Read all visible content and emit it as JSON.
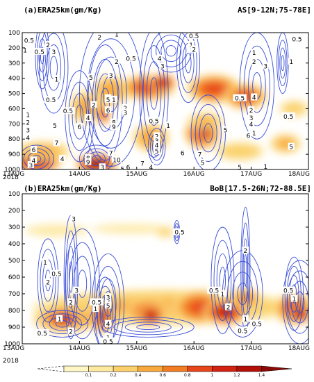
{
  "chart_data": [
    {
      "type": "heatmap",
      "panel": "(a)",
      "title": "(a)ERA25km(gm/Kg)",
      "region": "AS[9-12N;75-78E]",
      "x_ticks": [
        "13AUG",
        "14AUG",
        "15AUG",
        "16AUG",
        "17AUG",
        "18AUG"
      ],
      "x_year": "2018",
      "y_ticks": [
        1000,
        900,
        800,
        700,
        600,
        500,
        400,
        300,
        200,
        100
      ],
      "ylim": [
        1000,
        100
      ],
      "xlim": [
        0,
        5
      ],
      "fill_blobs": [
        {
          "x": 0.25,
          "p": 940,
          "rx": 0.45,
          "rp": 95,
          "v": 1.35
        },
        {
          "x": 1.3,
          "p": 965,
          "rx": 0.38,
          "rp": 70,
          "v": 1.45
        },
        {
          "x": 0.35,
          "p": 880,
          "rx": 0.55,
          "rp": 70,
          "v": 0.45
        },
        {
          "x": 1.1,
          "p": 590,
          "rx": 0.3,
          "rp": 120,
          "v": 0.45
        },
        {
          "x": 1.42,
          "p": 510,
          "rx": 0.14,
          "rp": 90,
          "v": 1.35
        },
        {
          "x": 1.42,
          "p": 640,
          "rx": 0.12,
          "rp": 70,
          "v": 1.0
        },
        {
          "x": 1.55,
          "p": 480,
          "rx": 0.35,
          "rp": 110,
          "v": 0.5
        },
        {
          "x": 2.2,
          "p": 460,
          "rx": 0.5,
          "rp": 90,
          "v": 0.9
        },
        {
          "x": 2.45,
          "p": 430,
          "rx": 0.25,
          "rp": 60,
          "v": 1.25
        },
        {
          "x": 3.35,
          "p": 470,
          "rx": 0.5,
          "rp": 100,
          "v": 0.9
        },
        {
          "x": 3.9,
          "p": 520,
          "rx": 0.4,
          "rp": 90,
          "v": 0.85
        },
        {
          "x": 2.25,
          "p": 790,
          "rx": 0.35,
          "rp": 100,
          "v": 0.55
        },
        {
          "x": 3.15,
          "p": 760,
          "rx": 0.33,
          "rp": 110,
          "v": 1.05
        },
        {
          "x": 3.2,
          "p": 750,
          "rx": 0.18,
          "rp": 60,
          "v": 1.3
        },
        {
          "x": 3.2,
          "p": 680,
          "rx": 0.35,
          "rp": 60,
          "v": 0.4
        },
        {
          "x": 3.8,
          "p": 880,
          "rx": 0.5,
          "rp": 70,
          "v": 0.3
        },
        {
          "x": 4.6,
          "p": 830,
          "rx": 0.3,
          "rp": 70,
          "v": 0.45
        },
        {
          "x": 4.75,
          "p": 600,
          "rx": 0.3,
          "rp": 60,
          "v": 0.3
        }
      ],
      "contour_labels": [
        {
          "x": 0.12,
          "p": 150,
          "t": "0.5"
        },
        {
          "x": 0.3,
          "p": 225,
          "t": "0.5"
        },
        {
          "x": 0.45,
          "p": 180,
          "t": "2"
        },
        {
          "x": 0.55,
          "p": 225,
          "t": "3"
        },
        {
          "x": 0.05,
          "p": 215,
          "t": "1"
        },
        {
          "x": 0.1,
          "p": 640,
          "t": "1"
        },
        {
          "x": 0.1,
          "p": 690,
          "t": "2"
        },
        {
          "x": 0.1,
          "p": 740,
          "t": "3"
        },
        {
          "x": 0.1,
          "p": 790,
          "t": "4"
        },
        {
          "x": 0.57,
          "p": 710,
          "t": "5"
        },
        {
          "x": 0.2,
          "p": 870,
          "t": "6"
        },
        {
          "x": 0.6,
          "p": 825,
          "t": "7"
        },
        {
          "x": 0.15,
          "p": 970,
          "t": "3"
        },
        {
          "x": 0.2,
          "p": 940,
          "t": "4"
        },
        {
          "x": 0.7,
          "p": 930,
          "t": "4"
        },
        {
          "x": 0.6,
          "p": 405,
          "t": "1"
        },
        {
          "x": 0.5,
          "p": 540,
          "t": "0.5"
        },
        {
          "x": 0.8,
          "p": 615,
          "t": "0.5"
        },
        {
          "x": 1.0,
          "p": 720,
          "t": "6"
        },
        {
          "x": 1.15,
          "p": 925,
          "t": "8"
        },
        {
          "x": 1.15,
          "p": 950,
          "t": "9"
        },
        {
          "x": 1.55,
          "p": 890,
          "t": "7"
        },
        {
          "x": 1.4,
          "p": 985,
          "t": "3"
        },
        {
          "x": 1.35,
          "p": 130,
          "t": "2"
        },
        {
          "x": 1.65,
          "p": 110,
          "t": "1"
        },
        {
          "x": 1.2,
          "p": 395,
          "t": "5"
        },
        {
          "x": 1.25,
          "p": 575,
          "t": "2"
        },
        {
          "x": 1.15,
          "p": 660,
          "t": "4"
        },
        {
          "x": 1.55,
          "p": 380,
          "t": "3"
        },
        {
          "x": 1.65,
          "p": 290,
          "t": "2"
        },
        {
          "x": 1.5,
          "p": 530,
          "t": "1"
        },
        {
          "x": 1.5,
          "p": 610,
          "t": "6"
        },
        {
          "x": 1.5,
          "p": 540,
          "t": "5"
        },
        {
          "x": 1.6,
          "p": 540,
          "t": "1"
        },
        {
          "x": 1.8,
          "p": 595,
          "t": "2"
        },
        {
          "x": 1.8,
          "p": 625,
          "t": "3"
        },
        {
          "x": 1.6,
          "p": 690,
          "t": "8"
        },
        {
          "x": 1.6,
          "p": 720,
          "t": "9"
        },
        {
          "x": 1.65,
          "p": 935,
          "t": "10"
        },
        {
          "x": 1.75,
          "p": 995,
          "t": "5"
        },
        {
          "x": 1.85,
          "p": 985,
          "t": "6"
        },
        {
          "x": 2.1,
          "p": 960,
          "t": "7"
        },
        {
          "x": 2.25,
          "p": 985,
          "t": "4"
        },
        {
          "x": 2.3,
          "p": 680,
          "t": "0.5"
        },
        {
          "x": 2.35,
          "p": 780,
          "t": "2"
        },
        {
          "x": 2.35,
          "p": 810,
          "t": "3"
        },
        {
          "x": 2.35,
          "p": 840,
          "t": "4"
        },
        {
          "x": 2.35,
          "p": 880,
          "t": "5"
        },
        {
          "x": 2.8,
          "p": 890,
          "t": "6"
        },
        {
          "x": 3.1,
          "p": 900,
          "t": "7"
        },
        {
          "x": 3.15,
          "p": 955,
          "t": "5"
        },
        {
          "x": 2.55,
          "p": 710,
          "t": "1"
        },
        {
          "x": 1.9,
          "p": 270,
          "t": "0.5"
        },
        {
          "x": 2.4,
          "p": 270,
          "t": "4"
        },
        {
          "x": 2.45,
          "p": 320,
          "t": "3"
        },
        {
          "x": 2.95,
          "p": 180,
          "t": "1"
        },
        {
          "x": 3.0,
          "p": 210,
          "t": "2"
        },
        {
          "x": 3.0,
          "p": 120,
          "t": "0.5"
        },
        {
          "x": 3.55,
          "p": 740,
          "t": "5"
        },
        {
          "x": 3.95,
          "p": 775,
          "t": "6"
        },
        {
          "x": 4.0,
          "p": 610,
          "t": "2"
        },
        {
          "x": 4.0,
          "p": 660,
          "t": "3"
        },
        {
          "x": 4.0,
          "p": 700,
          "t": "4"
        },
        {
          "x": 4.05,
          "p": 760,
          "t": "1"
        },
        {
          "x": 4.05,
          "p": 290,
          "t": "2"
        },
        {
          "x": 4.05,
          "p": 230,
          "t": "1"
        },
        {
          "x": 4.25,
          "p": 320,
          "t": "3"
        },
        {
          "x": 4.7,
          "p": 290,
          "t": "1"
        },
        {
          "x": 4.8,
          "p": 140,
          "t": "0.5"
        },
        {
          "x": 3.8,
          "p": 530,
          "t": "0.5"
        },
        {
          "x": 4.05,
          "p": 525,
          "t": "4"
        },
        {
          "x": 4.65,
          "p": 650,
          "t": "0.5"
        },
        {
          "x": 4.7,
          "p": 850,
          "t": "5"
        },
        {
          "x": 3.8,
          "p": 985,
          "t": "5"
        },
        {
          "x": 4.25,
          "p": 980,
          "t": "1"
        }
      ]
    },
    {
      "type": "heatmap",
      "panel": "(b)",
      "title": "(b)ERA25km(gm/Kg)",
      "region": "BoB[17.5-26N;72-88.5E]",
      "x_ticks": [
        "13AUG",
        "14AUG",
        "15AUG",
        "16AUG",
        "17AUG",
        "18AUG"
      ],
      "x_year": "2018",
      "y_ticks": [
        1000,
        900,
        800,
        700,
        600,
        500,
        400,
        300,
        200,
        100
      ],
      "ylim": [
        1000,
        100
      ],
      "xlim": [
        0,
        5
      ],
      "fill_blobs": [
        {
          "x": 0.6,
          "p": 320,
          "rx": 0.7,
          "rp": 45,
          "v": 0.18
        },
        {
          "x": 1.9,
          "p": 310,
          "rx": 0.9,
          "rp": 35,
          "v": 0.16
        },
        {
          "x": 2.5,
          "p": 330,
          "rx": 0.2,
          "rp": 40,
          "v": 0.22
        },
        {
          "x": 2.5,
          "p": 780,
          "rx": 2.6,
          "rp": 120,
          "v": 0.4
        },
        {
          "x": 0.75,
          "p": 850,
          "rx": 0.6,
          "rp": 90,
          "v": 0.75
        },
        {
          "x": 0.7,
          "p": 850,
          "rx": 0.35,
          "rp": 60,
          "v": 1.2
        },
        {
          "x": 1.4,
          "p": 840,
          "rx": 0.25,
          "rp": 100,
          "v": 1.0
        },
        {
          "x": 1.43,
          "p": 830,
          "rx": 0.12,
          "rp": 60,
          "v": 1.4
        },
        {
          "x": 2.2,
          "p": 810,
          "rx": 0.4,
          "rp": 90,
          "v": 0.9
        },
        {
          "x": 2.25,
          "p": 830,
          "rx": 0.25,
          "rp": 60,
          "v": 1.25
        },
        {
          "x": 3.1,
          "p": 780,
          "rx": 0.5,
          "rp": 110,
          "v": 0.85
        },
        {
          "x": 3.55,
          "p": 810,
          "rx": 0.4,
          "rp": 80,
          "v": 1.2
        },
        {
          "x": 3.9,
          "p": 730,
          "rx": 0.3,
          "rp": 70,
          "v": 0.6
        },
        {
          "x": 4.75,
          "p": 790,
          "rx": 0.35,
          "rp": 100,
          "v": 1.0
        },
        {
          "x": 4.85,
          "p": 820,
          "rx": 0.2,
          "rp": 60,
          "v": 1.35
        }
      ],
      "contour_labels": [
        {
          "x": 0.9,
          "p": 250,
          "t": "3"
        },
        {
          "x": 0.4,
          "p": 510,
          "t": "1"
        },
        {
          "x": 0.6,
          "p": 580,
          "t": "0.5"
        },
        {
          "x": 0.45,
          "p": 630,
          "t": "2"
        },
        {
          "x": 0.95,
          "p": 680,
          "t": "3"
        },
        {
          "x": 0.85,
          "p": 750,
          "t": "2"
        },
        {
          "x": 0.65,
          "p": 850,
          "t": "1"
        },
        {
          "x": 0.35,
          "p": 935,
          "t": "0.5"
        },
        {
          "x": 0.85,
          "p": 925,
          "t": "2"
        },
        {
          "x": 1.3,
          "p": 750,
          "t": "0.5"
        },
        {
          "x": 1.28,
          "p": 790,
          "t": "1"
        },
        {
          "x": 1.5,
          "p": 745,
          "t": "2"
        },
        {
          "x": 1.5,
          "p": 720,
          "t": "3"
        },
        {
          "x": 1.5,
          "p": 770,
          "t": "5"
        },
        {
          "x": 1.5,
          "p": 880,
          "t": "4"
        },
        {
          "x": 1.5,
          "p": 960,
          "t": "1"
        },
        {
          "x": 1.5,
          "p": 985,
          "t": "0.5"
        },
        {
          "x": 2.75,
          "p": 330,
          "t": "0.5"
        },
        {
          "x": 3.35,
          "p": 680,
          "t": "0.5"
        },
        {
          "x": 3.5,
          "p": 700,
          "t": "1"
        },
        {
          "x": 3.9,
          "p": 440,
          "t": "2"
        },
        {
          "x": 3.6,
          "p": 780,
          "t": "2"
        },
        {
          "x": 3.9,
          "p": 850,
          "t": "1"
        },
        {
          "x": 4.1,
          "p": 880,
          "t": "0.5"
        },
        {
          "x": 3.85,
          "p": 920,
          "t": "0.5"
        },
        {
          "x": 4.65,
          "p": 680,
          "t": "0.5"
        },
        {
          "x": 4.75,
          "p": 730,
          "t": "1"
        }
      ]
    }
  ],
  "colorbar": {
    "levels": [
      "0.1",
      "0.2",
      "0.4",
      "0.6",
      "0.8",
      "1",
      "1.2",
      "1.4"
    ],
    "colors": [
      "#fef7c4",
      "#fde8a0",
      "#fbd06a",
      "#f8a93e",
      "#f27d24",
      "#e7461b",
      "#d22211",
      "#b31008",
      "#8c0a06"
    ]
  }
}
